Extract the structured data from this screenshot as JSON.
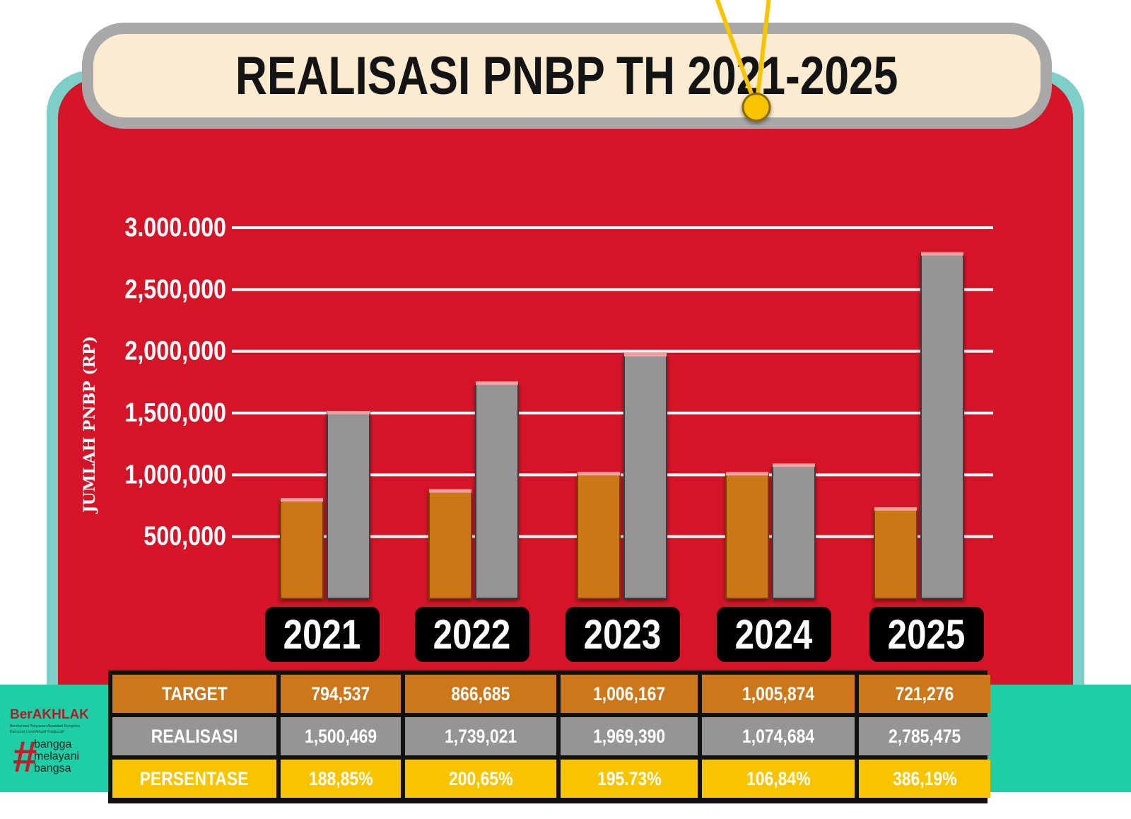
{
  "title": "REALISASI PNBP TH 2021-2025",
  "logo": {
    "brand": "BerAKHLAK",
    "tagline_line1": "Berorientasi Pelayanan Akuntabel Kompeten",
    "tagline_line2": "Harmonis Loyal Adaptif Kolaboratif",
    "hashtag": "#",
    "words": [
      "bangga",
      "melayani",
      "bangsa"
    ]
  },
  "colors": {
    "target": "#cc7719",
    "realisasi": "#959595",
    "persentase": "#f8c400",
    "background": "#d51427"
  },
  "chart_data": {
    "type": "bar",
    "title": "REALISASI PNBP TH 2021-2025",
    "ylabel": "JUMLAH PNBP (RP)",
    "xlabel": "",
    "categories": [
      "2021",
      "2022",
      "2023",
      "2024",
      "2025"
    ],
    "ylim": [
      0,
      3000000
    ],
    "yticks": [
      500000,
      1000000,
      1500000,
      2000000,
      2500000,
      3000000
    ],
    "ytick_labels": [
      "500,000",
      "1,000,000",
      "1,500,000",
      "2,000,000",
      "2,500,000",
      "3.000.000"
    ],
    "grid": true,
    "series": [
      {
        "name": "TARGET",
        "type": "bar",
        "values": [
          794537,
          866685,
          1006167,
          1005874,
          721276
        ]
      },
      {
        "name": "REALISASI",
        "type": "bar",
        "values": [
          1500469,
          1739021,
          1969390,
          1074684,
          2785475
        ]
      },
      {
        "name": "PERSENTASE",
        "type": "line",
        "unit": "%",
        "values": [
          188.85,
          200.65,
          195.73,
          106.84,
          386.19
        ]
      }
    ]
  },
  "table": {
    "rows": [
      {
        "label": "TARGET",
        "cells": [
          "794,537",
          "866,685",
          "1,006,167",
          "1,005,874",
          "721,276"
        ]
      },
      {
        "label": "REALISASI",
        "cells": [
          "1,500,469",
          "1,739,021",
          "1,969,390",
          "1,074,684",
          "2,785,475"
        ]
      },
      {
        "label": "PERSENTASE",
        "cells": [
          "188,85%",
          "200,65%",
          "195.73%",
          "106,84%",
          "386,19%"
        ]
      }
    ]
  }
}
